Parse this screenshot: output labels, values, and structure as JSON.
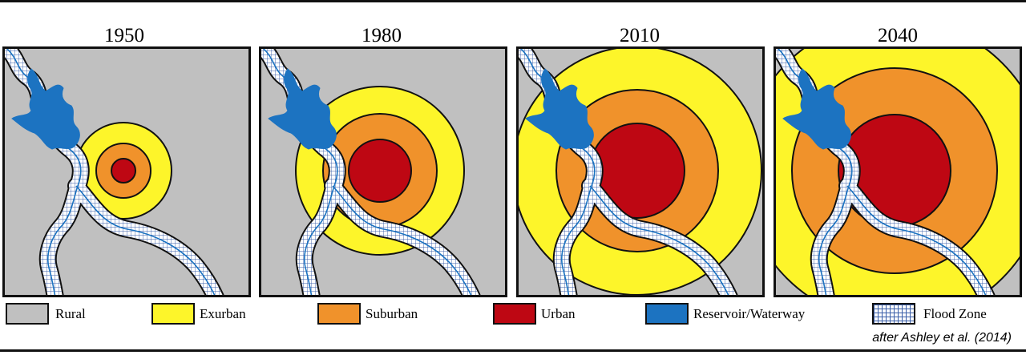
{
  "panels": [
    {
      "year": "1950",
      "rings": [
        {
          "class": "exurban",
          "r": 60
        },
        {
          "class": "suburban",
          "r": 34
        },
        {
          "class": "urban",
          "r": 15
        }
      ]
    },
    {
      "year": "1980",
      "rings": [
        {
          "class": "exurban",
          "r": 105
        },
        {
          "class": "suburban",
          "r": 71
        },
        {
          "class": "urban",
          "r": 39
        }
      ]
    },
    {
      "year": "2010",
      "rings": [
        {
          "class": "exurban",
          "r": 155
        },
        {
          "class": "suburban",
          "r": 101
        },
        {
          "class": "urban",
          "r": 59
        }
      ]
    },
    {
      "year": "2040",
      "rings": [
        {
          "class": "exurban",
          "r": 190
        },
        {
          "class": "suburban",
          "r": 128
        },
        {
          "class": "urban",
          "r": 70
        }
      ]
    }
  ],
  "legend": [
    {
      "label": "Rural",
      "color": "#c0c0c0",
      "pattern": false
    },
    {
      "label": "Exurban",
      "color": "#fdf52a",
      "pattern": false
    },
    {
      "label": "Suburban",
      "color": "#f0922b",
      "pattern": false
    },
    {
      "label": "Urban",
      "color": "#be0713",
      "pattern": false
    },
    {
      "label": "Reservoir/Waterway",
      "color": "#1c73c1",
      "pattern": false
    },
    {
      "label": "Flood Zone",
      "color": "#ffffff",
      "pattern": true
    }
  ],
  "credit": "after Ashley et al. (2014)",
  "colors": {
    "rural": "#c0c0c0",
    "exurban": "#fdf52a",
    "suburban": "#f0922b",
    "urban": "#be0713",
    "water": "#1c73c1",
    "flood_grid": "#3a5ea8",
    "outline": "#111111"
  }
}
